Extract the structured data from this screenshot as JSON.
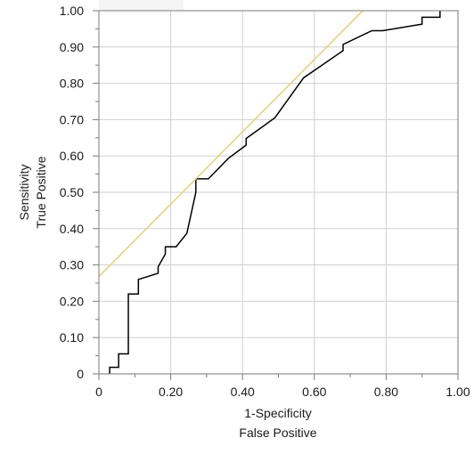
{
  "chart_data": {
    "type": "line",
    "title": "",
    "xlabel": [
      "1-Specificity",
      "False Positive"
    ],
    "ylabel": [
      "Sensitivity",
      "True Positive"
    ],
    "xlim": [
      0,
      1
    ],
    "ylim": [
      0,
      1
    ],
    "grid": true,
    "x_ticks": [
      "0",
      "0.20",
      "0.40",
      "0.60",
      "0.80",
      "1.00"
    ],
    "y_ticks": [
      "0",
      "0.10",
      "0.20",
      "0.30",
      "0.40",
      "0.50",
      "0.60",
      "0.70",
      "0.80",
      "0.90",
      "1.00"
    ],
    "series": [
      {
        "color": "#000000",
        "points": [
          [
            0.03,
            0.0
          ],
          [
            0.03,
            0.018
          ],
          [
            0.055,
            0.018
          ],
          [
            0.055,
            0.055
          ],
          [
            0.082,
            0.055
          ],
          [
            0.082,
            0.22
          ],
          [
            0.11,
            0.22
          ],
          [
            0.11,
            0.26
          ],
          [
            0.165,
            0.277
          ],
          [
            0.165,
            0.295
          ],
          [
            0.185,
            0.33
          ],
          [
            0.185,
            0.35
          ],
          [
            0.215,
            0.35
          ],
          [
            0.245,
            0.387
          ],
          [
            0.27,
            0.5
          ],
          [
            0.27,
            0.537
          ],
          [
            0.305,
            0.537
          ],
          [
            0.36,
            0.593
          ],
          [
            0.41,
            0.63
          ],
          [
            0.41,
            0.648
          ],
          [
            0.49,
            0.705
          ],
          [
            0.57,
            0.815
          ],
          [
            0.68,
            0.89
          ],
          [
            0.68,
            0.907
          ],
          [
            0.76,
            0.945
          ],
          [
            0.79,
            0.945
          ],
          [
            0.9,
            0.963
          ],
          [
            0.9,
            0.982
          ],
          [
            0.95,
            0.982
          ],
          [
            0.95,
            1.0
          ]
        ]
      },
      {
        "color": "#e6d27f",
        "points": [
          [
            0.0,
            0.268
          ],
          [
            0.735,
            1.0
          ]
        ]
      }
    ]
  }
}
